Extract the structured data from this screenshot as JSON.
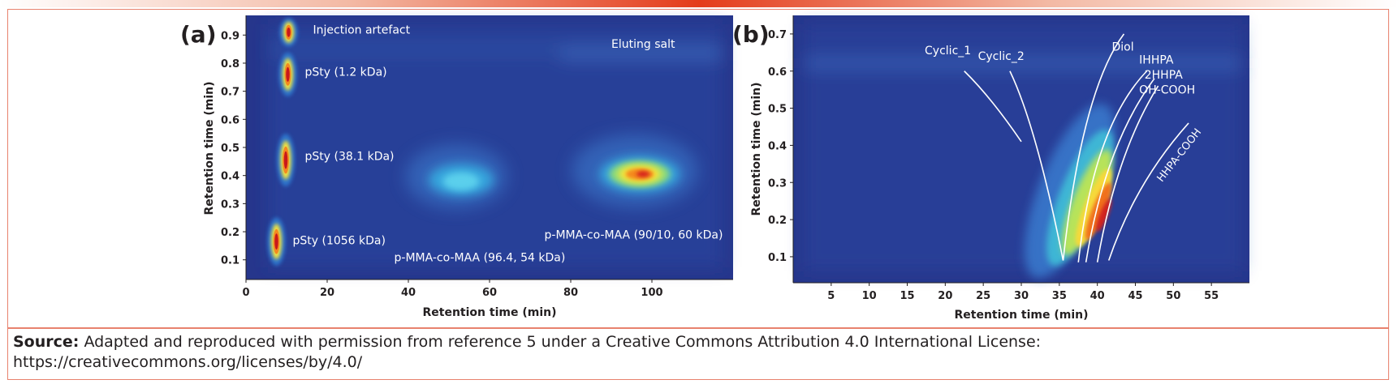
{
  "chart_data": [
    {
      "type": "heatmap",
      "panel_label": "(a)",
      "xlabel": "Retention time (min)",
      "ylabel": "Retention time (min)",
      "xlim": [
        0,
        120
      ],
      "ylim": [
        0.03,
        0.97
      ],
      "x_ticks": [
        0,
        20,
        40,
        60,
        80,
        100
      ],
      "y_ticks": [
        0.1,
        0.2,
        0.3,
        0.4,
        0.5,
        0.6,
        0.7,
        0.8,
        0.9
      ],
      "annotations": [
        {
          "text": "Injection artefact",
          "x": 16.5,
          "y": 0.905
        },
        {
          "text": "Eluting salt",
          "x": 90,
          "y": 0.855
        },
        {
          "text": "pSty (1.2 kDa)",
          "x": 14.5,
          "y": 0.755
        },
        {
          "text": "pSty (38.1 kDa)",
          "x": 14.5,
          "y": 0.455
        },
        {
          "text": "pSty (1056 kDa)",
          "x": 11.5,
          "y": 0.155
        },
        {
          "text": "p-MMA-co-MAA (90/10, 60 kDa)",
          "x": 73.5,
          "y": 0.175
        },
        {
          "text": "p-MMA-co-MAA (96.4, 54 kDa)",
          "x": 36.5,
          "y": 0.095
        }
      ],
      "peaks": [
        {
          "x": 10.5,
          "y": 0.91,
          "intensity": 0.9
        },
        {
          "x": 10.3,
          "y": 0.76,
          "intensity": 1.0
        },
        {
          "x": 9.8,
          "y": 0.455,
          "intensity": 1.0
        },
        {
          "x": 7.5,
          "y": 0.165,
          "intensity": 0.95
        },
        {
          "x": 53,
          "y": 0.385,
          "intensity": 0.35
        },
        {
          "x": 97,
          "y": 0.405,
          "intensity": 0.85
        }
      ]
    },
    {
      "type": "heatmap",
      "panel_label": "(b)",
      "xlabel": "Retention time (min)",
      "ylabel": "Retention time (min)",
      "xlim": [
        0,
        60
      ],
      "ylim": [
        0.03,
        0.75
      ],
      "x_ticks": [
        5,
        10,
        15,
        20,
        25,
        30,
        35,
        40,
        45,
        50,
        55
      ],
      "y_ticks": [
        0.1,
        0.2,
        0.3,
        0.4,
        0.5,
        0.6,
        0.7
      ],
      "annotations": [
        {
          "text": "Cyclic_1",
          "x": 17.3,
          "y": 0.645
        },
        {
          "text": "Cyclic_2",
          "x": 24.3,
          "y": 0.63
        },
        {
          "text": "Diol",
          "x": 41.9,
          "y": 0.655
        },
        {
          "text": "IHHPA",
          "x": 45.5,
          "y": 0.62
        },
        {
          "text": "2HHPA",
          "x": 46.2,
          "y": 0.58
        },
        {
          "text": "OH-COOH",
          "x": 45.5,
          "y": 0.54
        },
        {
          "text": "HHPA-COOH",
          "x": 48.5,
          "y": 0.3
        }
      ],
      "peaks": [
        {
          "x": 41,
          "y": 0.22,
          "intensity": 0.95
        },
        {
          "x": 42.5,
          "y": 0.35,
          "intensity": 0.55
        }
      ]
    }
  ],
  "caption": {
    "label": "Source:",
    "text": "Adapted and reproduced with permission from reference 5 under a Creative Commons Attribution 4.0 International License: https://creativecommons.org/licenses/by/4.0/"
  }
}
